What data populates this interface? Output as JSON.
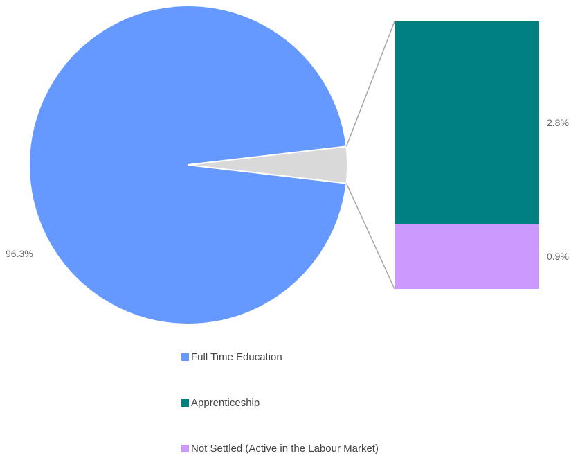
{
  "chart_data": {
    "type": "pie",
    "subtype": "bar-of-pie",
    "slices": [
      {
        "name": "Full Time Education",
        "value": 96.3,
        "label": "96.3%",
        "color": "#6699ff"
      },
      {
        "name": "Apprenticeship",
        "value": 2.8,
        "label": "2.8%",
        "color": "#008080"
      },
      {
        "name": "Not Settled (Active in the Labour Market)",
        "value": 0.9,
        "label": "0.9%",
        "color": "#cc99ff"
      }
    ],
    "other_slice_color": "#d9d9d9",
    "connector_color": "#a6a6a6",
    "legend_position": "bottom"
  }
}
